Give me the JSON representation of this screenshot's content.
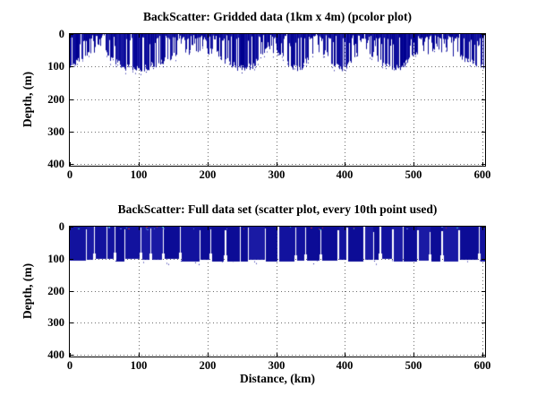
{
  "figure": {
    "background": "#ffffff",
    "text_color": "#000000",
    "axis_color": "#000000",
    "grid_color": "#6e6e6e"
  },
  "chart_data": [
    {
      "type": "pcolor",
      "title": "BackScatter: Gridded data (1km x 4m) (pcolor plot)",
      "xlabel": "",
      "ylabel": "Depth, (m)",
      "xlim": [
        0,
        600
      ],
      "ylim": [
        0,
        400
      ],
      "y_axis_reversed": true,
      "x_ticks": [
        "0",
        "100",
        "200",
        "300",
        "400",
        "500",
        "600"
      ],
      "y_ticks": [
        "0",
        "100",
        "200",
        "300",
        "400"
      ],
      "grid": true,
      "grid_style": "dotted",
      "data_color": "#12129e",
      "data_color_variants": [
        "#00008f",
        "#0a0a9a",
        "#12129e",
        "#1d1da8"
      ],
      "data_summary": {
        "description": "Barcode-like pattern of dense 1-km-wide dark blue vertical columns spanning the full 0-600 km distance range; columns reach from the surface (0 m) down to between roughly 35 m and 112 m depth with ragged bottoms; everything deeper than ~112 m is empty white water.",
        "x_coverage_km": [
          0,
          600
        ],
        "depth_extent_m": [
          0,
          112
        ],
        "fill_fraction": 0.65
      }
    },
    {
      "type": "scatter",
      "title": "BackScatter: Full data set (scatter plot, every 10th point used)",
      "xlabel": "Distance, (km)",
      "ylabel": "Depth, (m)",
      "xlim": [
        0,
        600
      ],
      "ylim": [
        0,
        400
      ],
      "y_axis_reversed": true,
      "x_ticks": [
        "0",
        "100",
        "200",
        "300",
        "400",
        "500",
        "600"
      ],
      "y_ticks": [
        "0",
        "100",
        "200",
        "300",
        "400"
      ],
      "grid": true,
      "grid_style": "dotted",
      "data_color": "#12129e",
      "data_color_variants": [
        "#0c0c96",
        "#12129e",
        "#1a1aa4"
      ],
      "speck_colors": [
        "#c03030",
        "#2ab6c8",
        "#5f7fe8"
      ],
      "data_summary": {
        "description": "Nearly continuous block of overlapping dark blue scatter points from the surface down to ~100-108 m depth across the whole 0-600 km range, broken by thin white vertical slits between profiles; a few red and cyan outlier points sit in the top few metres; water below ~108 m is empty white.",
        "x_coverage_km": [
          0,
          600
        ],
        "depth_extent_m": [
          0,
          108
        ]
      }
    }
  ]
}
